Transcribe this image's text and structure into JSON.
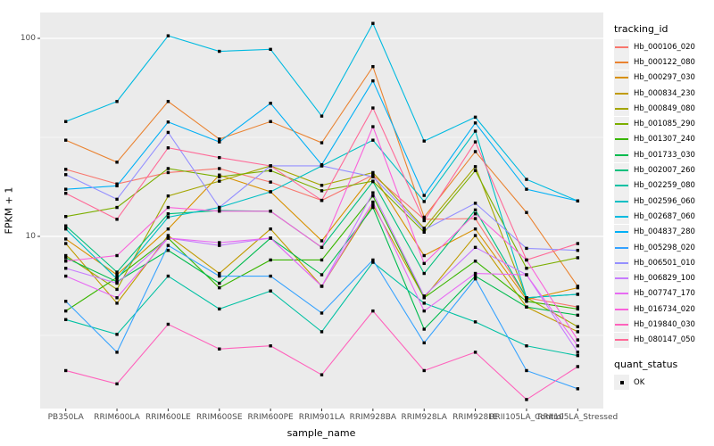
{
  "figure": {
    "y_axis_title": "FPKM + 1",
    "x_axis_title": "sample_name",
    "y_axis_ticks": [
      {
        "value": 100,
        "label": "100"
      },
      {
        "value": 10,
        "label": "10"
      }
    ],
    "legend": {
      "tracking_title": "tracking_id",
      "quant_title": "quant_status",
      "quant_items": [
        {
          "label": "OK"
        }
      ]
    }
  },
  "chart_data": {
    "type": "line",
    "title": "",
    "xlabel": "sample_name",
    "ylabel": "FPKM + 1",
    "yscale": "log10",
    "ylim": [
      1.35,
      135
    ],
    "grid": true,
    "legend_position": "right",
    "panel_bg": "#EBEBEB",
    "grid_color": "#FFFFFF",
    "tick_text_color": "#4d4d4d",
    "point_color": "#000000",
    "point_shape": "square",
    "quant_status": "OK",
    "y_major_gridlines": [
      10,
      100
    ],
    "y_minor_gridlines": [
      3.1623,
      31.6228
    ],
    "categories": [
      "PB350LA",
      "RRIM600LA",
      "RRIM600LE",
      "RRIM600SE",
      "RRIM600PE",
      "RRIM901LA",
      "RRIM928BA",
      "RRIM928LA",
      "RRIM928LE",
      "RRII105LA_Control",
      "RRII105LA_Stressed"
    ],
    "series": [
      {
        "name": "Hb_000106_020",
        "color": "#F8766D",
        "values": [
          21.8,
          18.4,
          21.0,
          22.0,
          18.8,
          15.2,
          20.4,
          12.2,
          12.3,
          4.9,
          4.4
        ]
      },
      {
        "name": "Hb_000122_080",
        "color": "#EA8331",
        "values": [
          30.6,
          23.7,
          48.0,
          31.0,
          38.0,
          29.7,
          72.0,
          12.5,
          26.8,
          13.2,
          5.6
        ]
      },
      {
        "name": "Hb_000297_030",
        "color": "#D89000",
        "values": [
          9.7,
          6.4,
          10.9,
          20.4,
          16.8,
          9.5,
          20.4,
          8.0,
          10.9,
          4.8,
          5.5
        ]
      },
      {
        "name": "Hb_000834_230",
        "color": "#C09B00",
        "values": [
          9.2,
          4.6,
          10.1,
          6.5,
          10.9,
          5.6,
          14.4,
          4.9,
          10.1,
          4.4,
          3.3
        ]
      },
      {
        "name": "Hb_000849_080",
        "color": "#A3A500",
        "values": [
          8.0,
          5.4,
          16.0,
          19.0,
          22.7,
          18.1,
          21.0,
          11.0,
          22.5,
          4.9,
          3.5
        ]
      },
      {
        "name": "Hb_001085_290",
        "color": "#7CAE00",
        "values": [
          12.6,
          14.0,
          22.0,
          20.0,
          21.5,
          17.0,
          19.0,
          10.5,
          21.5,
          6.9,
          7.8
        ]
      },
      {
        "name": "Hb_001307_240",
        "color": "#39B600",
        "values": [
          4.2,
          6.2,
          9.8,
          5.5,
          7.6,
          7.6,
          16.0,
          4.9,
          7.5,
          4.7,
          4.3
        ]
      },
      {
        "name": "Hb_001733_030",
        "color": "#00BB4E",
        "values": [
          7.8,
          5.9,
          8.5,
          5.8,
          9.8,
          6.4,
          14.0,
          3.4,
          6.3,
          4.4,
          4.0
        ]
      },
      {
        "name": "Hb_002007_260",
        "color": "#00BF7D",
        "values": [
          11.3,
          6.6,
          13.0,
          13.5,
          13.4,
          8.8,
          18.9,
          6.5,
          13.6,
          4.9,
          5.1
        ]
      },
      {
        "name": "Hb_002259_080",
        "color": "#00C1A3",
        "values": [
          3.8,
          3.2,
          6.3,
          4.3,
          5.3,
          3.3,
          7.4,
          4.6,
          3.7,
          2.8,
          2.5
        ]
      },
      {
        "name": "Hb_002596_060",
        "color": "#00BFC4",
        "values": [
          10.9,
          6.1,
          12.5,
          14.0,
          16.8,
          22.7,
          30.6,
          15.0,
          34.0,
          4.9,
          5.1
        ]
      },
      {
        "name": "Hb_002687_060",
        "color": "#00BAE0",
        "values": [
          38.0,
          48.0,
          103.0,
          86.0,
          88.0,
          40.5,
          119.0,
          30.3,
          40.0,
          19.4,
          15.1
        ]
      },
      {
        "name": "Hb_004837_280",
        "color": "#00B0F6",
        "values": [
          17.3,
          18.0,
          37.8,
          30.0,
          47.0,
          23.0,
          61.0,
          16.1,
          37.4,
          17.3,
          15.1
        ]
      },
      {
        "name": "Hb_005298_020",
        "color": "#35A2FF",
        "values": [
          4.7,
          2.6,
          9.0,
          6.3,
          6.3,
          4.1,
          7.6,
          2.9,
          6.1,
          2.1,
          1.7
        ]
      },
      {
        "name": "Hb_006501_010",
        "color": "#9590FF",
        "values": [
          20.5,
          15.4,
          33.5,
          14.0,
          22.7,
          22.7,
          20.0,
          10.8,
          14.7,
          8.7,
          8.5
        ]
      },
      {
        "name": "Hb_006829_100",
        "color": "#C77CFF",
        "values": [
          6.9,
          5.8,
          9.8,
          9.0,
          9.8,
          5.6,
          16.6,
          5.0,
          8.8,
          6.4,
          2.6
        ]
      },
      {
        "name": "Hb_007747_170",
        "color": "#E76BF3",
        "values": [
          6.3,
          4.9,
          9.8,
          9.3,
          9.8,
          5.6,
          14.9,
          4.2,
          6.5,
          6.4,
          2.8
        ]
      },
      {
        "name": "Hb_016734_020",
        "color": "#FA62DB",
        "values": [
          7.5,
          8.0,
          14.0,
          13.4,
          13.4,
          8.8,
          35.8,
          7.3,
          13.0,
          7.6,
          3.0
        ]
      },
      {
        "name": "Hb_019840_030",
        "color": "#FF62BC",
        "values": [
          2.1,
          1.8,
          3.6,
          2.7,
          2.8,
          2.0,
          4.2,
          2.1,
          2.6,
          1.5,
          2.2
        ]
      },
      {
        "name": "Hb_080147_050",
        "color": "#FF6A98",
        "values": [
          16.5,
          12.2,
          28.0,
          25.0,
          22.7,
          15.2,
          44.5,
          12.0,
          30.0,
          7.6,
          9.2
        ]
      }
    ]
  }
}
